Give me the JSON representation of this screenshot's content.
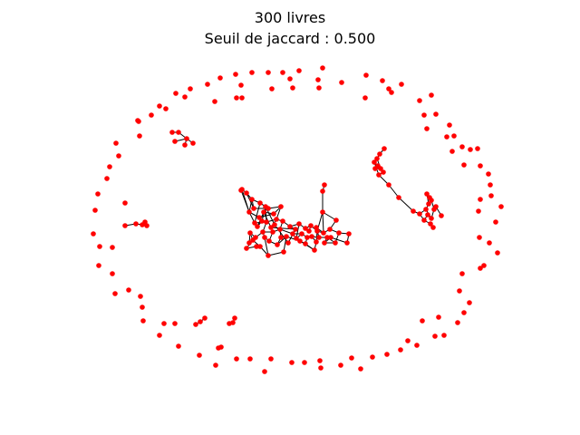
{
  "title": {
    "line1": "300 livres",
    "line2": "Seuil de jaccard : 0.500"
  },
  "graph": {
    "node_count_label": "300 livres",
    "jaccard_threshold": 0.5,
    "node_color": "#ff0000",
    "edge_color": "#000000"
  }
}
